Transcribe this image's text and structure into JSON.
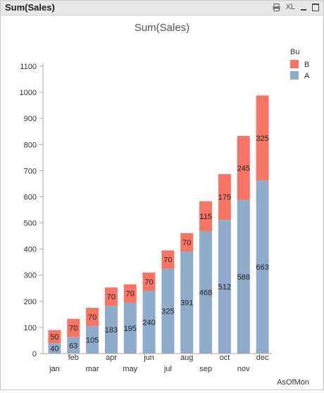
{
  "window": {
    "title": "Sum(Sales)",
    "xl_label": "XL",
    "icons": [
      "print-icon",
      "xl-icon",
      "minimize-icon",
      "maximize-icon"
    ]
  },
  "chart_data": {
    "type": "bar",
    "stacked": true,
    "title": "Sum(Sales)",
    "xlabel": "AsOfMon",
    "ylabel": "",
    "ylim": [
      0,
      1100
    ],
    "yticks": [
      0,
      100,
      200,
      300,
      400,
      500,
      600,
      700,
      800,
      900,
      1000,
      1100
    ],
    "categories": [
      "jan",
      "feb",
      "mar",
      "apr",
      "may",
      "jun",
      "jul",
      "aug",
      "sep",
      "oct",
      "nov",
      "dec"
    ],
    "series": [
      {
        "name": "A",
        "color": "#8eabcc",
        "values": [
          40,
          63,
          105,
          183,
          195,
          240,
          325,
          391,
          468,
          512,
          588,
          663
        ]
      },
      {
        "name": "B",
        "color": "#f87565",
        "values": [
          50,
          70,
          70,
          70,
          70,
          70,
          70,
          70,
          115,
          175,
          245,
          325
        ]
      }
    ],
    "legend": {
      "title": "Bu",
      "position": "top-right"
    },
    "grid": false,
    "data_labels": true
  }
}
